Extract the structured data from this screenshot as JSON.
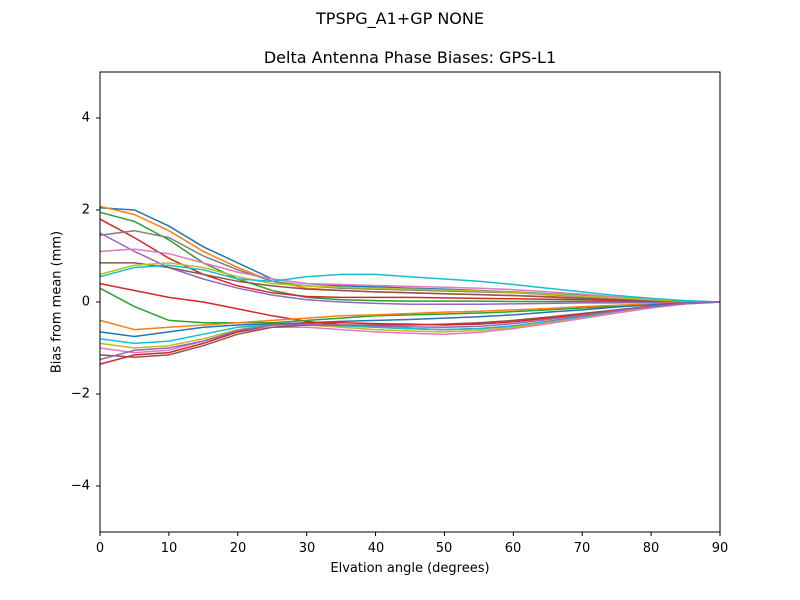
{
  "figure": {
    "suptitle": "TPSPG_A1+GP     NONE",
    "title": "Delta Antenna Phase Biases: GPS-L1",
    "xlabel": "Elvation angle (degrees)",
    "ylabel": "Bias from mean (mm)",
    "xticks": [
      "0",
      "10",
      "20",
      "30",
      "40",
      "50",
      "60",
      "70",
      "80",
      "90"
    ],
    "yticks": [
      "4",
      "2",
      "0",
      "−2",
      "−4"
    ]
  },
  "chart_data": {
    "type": "line",
    "title": "Delta Antenna Phase Biases: GPS-L1",
    "suptitle": "TPSPG_A1+GP     NONE",
    "xlabel": "Elvation angle (degrees)",
    "ylabel": "Bias from mean (mm)",
    "xlim": [
      0,
      90
    ],
    "ylim": [
      -5,
      5
    ],
    "grid": false,
    "legend": "none",
    "x": [
      0,
      5,
      10,
      15,
      20,
      25,
      30,
      35,
      40,
      45,
      50,
      55,
      60,
      65,
      70,
      75,
      80,
      85,
      90
    ],
    "series": [
      {
        "name": "s1",
        "color": "#1f77b4",
        "values": [
          2.05,
          2.0,
          1.65,
          1.2,
          0.85,
          0.5,
          0.4,
          0.35,
          0.33,
          0.3,
          0.28,
          0.25,
          0.22,
          0.18,
          0.14,
          0.1,
          0.06,
          0.02,
          0.0
        ]
      },
      {
        "name": "s2",
        "color": "#ff7f0e",
        "values": [
          2.08,
          1.9,
          1.55,
          1.1,
          0.75,
          0.45,
          0.3,
          0.25,
          0.22,
          0.2,
          0.18,
          0.16,
          0.14,
          0.12,
          0.09,
          0.06,
          0.04,
          0.01,
          0.0
        ]
      },
      {
        "name": "s3",
        "color": "#2ca02c",
        "values": [
          1.95,
          1.75,
          1.35,
          0.85,
          0.5,
          0.25,
          0.1,
          0.05,
          0.03,
          0.02,
          0.02,
          0.02,
          0.01,
          0.01,
          0.01,
          0.0,
          0.0,
          0.0,
          0.0
        ]
      },
      {
        "name": "s4",
        "color": "#d62728",
        "values": [
          1.8,
          1.4,
          0.95,
          0.6,
          0.35,
          0.2,
          0.12,
          0.1,
          0.1,
          0.1,
          0.09,
          0.08,
          0.07,
          0.06,
          0.05,
          0.03,
          0.02,
          0.01,
          0.0
        ]
      },
      {
        "name": "s5",
        "color": "#7f7f7f",
        "values": [
          1.45,
          1.55,
          1.4,
          1.0,
          0.7,
          0.45,
          0.35,
          0.3,
          0.28,
          0.26,
          0.24,
          0.22,
          0.2,
          0.16,
          0.12,
          0.08,
          0.05,
          0.02,
          0.0
        ]
      },
      {
        "name": "s6",
        "color": "#9467bd",
        "values": [
          1.5,
          1.1,
          0.75,
          0.5,
          0.3,
          0.15,
          0.05,
          0.0,
          -0.03,
          -0.05,
          -0.05,
          -0.05,
          -0.04,
          -0.03,
          -0.02,
          -0.02,
          -0.01,
          0.0,
          0.0
        ]
      },
      {
        "name": "s7",
        "color": "#e377c2",
        "values": [
          1.1,
          1.15,
          1.05,
          0.85,
          0.65,
          0.5,
          0.4,
          0.38,
          0.36,
          0.34,
          0.32,
          0.3,
          0.27,
          0.22,
          0.17,
          0.11,
          0.06,
          0.02,
          0.0
        ]
      },
      {
        "name": "s8",
        "color": "#8c564b",
        "values": [
          0.85,
          0.85,
          0.75,
          0.6,
          0.45,
          0.35,
          0.28,
          0.25,
          0.22,
          0.2,
          0.18,
          0.16,
          0.14,
          0.11,
          0.08,
          0.05,
          0.03,
          0.01,
          0.0
        ]
      },
      {
        "name": "s9",
        "color": "#bcbd22",
        "values": [
          0.6,
          0.8,
          0.85,
          0.75,
          0.55,
          0.4,
          0.35,
          0.32,
          0.3,
          0.28,
          0.26,
          0.24,
          0.21,
          0.17,
          0.13,
          0.09,
          0.05,
          0.02,
          0.0
        ]
      },
      {
        "name": "s10",
        "color": "#17becf",
        "values": [
          0.55,
          0.75,
          0.8,
          0.7,
          0.5,
          0.45,
          0.55,
          0.6,
          0.6,
          0.55,
          0.5,
          0.45,
          0.38,
          0.3,
          0.22,
          0.14,
          0.08,
          0.03,
          0.0
        ]
      },
      {
        "name": "s11",
        "color": "#d62728",
        "values": [
          0.4,
          0.25,
          0.1,
          0.0,
          -0.15,
          -0.3,
          -0.42,
          -0.5,
          -0.55,
          -0.58,
          -0.6,
          -0.58,
          -0.52,
          -0.42,
          -0.32,
          -0.2,
          -0.1,
          -0.03,
          0.0
        ]
      },
      {
        "name": "s12",
        "color": "#2ca02c",
        "values": [
          0.3,
          -0.1,
          -0.4,
          -0.45,
          -0.45,
          -0.45,
          -0.4,
          -0.35,
          -0.3,
          -0.28,
          -0.26,
          -0.24,
          -0.21,
          -0.17,
          -0.13,
          -0.09,
          -0.05,
          -0.02,
          0.0
        ]
      },
      {
        "name": "s13",
        "color": "#ff7f0e",
        "values": [
          -0.4,
          -0.6,
          -0.55,
          -0.5,
          -0.45,
          -0.4,
          -0.35,
          -0.3,
          -0.28,
          -0.25,
          -0.22,
          -0.2,
          -0.17,
          -0.14,
          -0.1,
          -0.07,
          -0.04,
          -0.01,
          0.0
        ]
      },
      {
        "name": "s14",
        "color": "#1f77b4",
        "values": [
          -0.65,
          -0.75,
          -0.65,
          -0.55,
          -0.5,
          -0.48,
          -0.45,
          -0.42,
          -0.4,
          -0.38,
          -0.35,
          -0.32,
          -0.28,
          -0.22,
          -0.17,
          -0.11,
          -0.06,
          -0.02,
          0.0
        ]
      },
      {
        "name": "s15",
        "color": "#17becf",
        "values": [
          -0.8,
          -0.9,
          -0.85,
          -0.7,
          -0.55,
          -0.5,
          -0.5,
          -0.52,
          -0.55,
          -0.58,
          -0.6,
          -0.58,
          -0.52,
          -0.43,
          -0.33,
          -0.22,
          -0.12,
          -0.04,
          0.0
        ]
      },
      {
        "name": "s16",
        "color": "#bcbd22",
        "values": [
          -0.9,
          -1.0,
          -0.95,
          -0.8,
          -0.6,
          -0.5,
          -0.5,
          -0.55,
          -0.6,
          -0.63,
          -0.65,
          -0.62,
          -0.55,
          -0.45,
          -0.35,
          -0.23,
          -0.12,
          -0.04,
          0.0
        ]
      },
      {
        "name": "s17",
        "color": "#e377c2",
        "values": [
          -1.0,
          -1.1,
          -1.05,
          -0.85,
          -0.65,
          -0.55,
          -0.55,
          -0.6,
          -0.65,
          -0.68,
          -0.7,
          -0.66,
          -0.58,
          -0.47,
          -0.36,
          -0.24,
          -0.13,
          -0.04,
          0.0
        ]
      },
      {
        "name": "s18",
        "color": "#8c564b",
        "values": [
          -1.15,
          -1.2,
          -1.15,
          -0.95,
          -0.7,
          -0.55,
          -0.5,
          -0.5,
          -0.5,
          -0.5,
          -0.48,
          -0.45,
          -0.4,
          -0.33,
          -0.25,
          -0.17,
          -0.09,
          -0.03,
          0.0
        ]
      },
      {
        "name": "s19",
        "color": "#d62728",
        "values": [
          -1.35,
          -1.15,
          -1.1,
          -0.9,
          -0.65,
          -0.5,
          -0.45,
          -0.45,
          -0.47,
          -0.48,
          -0.5,
          -0.48,
          -0.43,
          -0.35,
          -0.27,
          -0.18,
          -0.1,
          -0.03,
          0.0
        ]
      },
      {
        "name": "s20",
        "color": "#9467bd",
        "values": [
          -1.25,
          -1.05,
          -1.0,
          -0.85,
          -0.62,
          -0.5,
          -0.48,
          -0.5,
          -0.52,
          -0.54,
          -0.55,
          -0.53,
          -0.47,
          -0.38,
          -0.29,
          -0.19,
          -0.1,
          -0.03,
          0.0
        ]
      }
    ]
  }
}
